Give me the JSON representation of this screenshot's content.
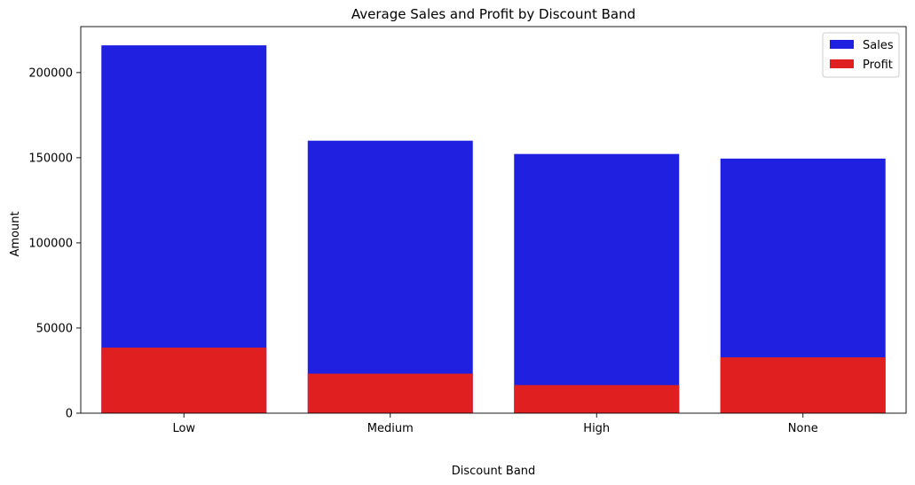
{
  "chart_data": {
    "type": "bar",
    "title": "Average Sales and Profit by Discount Band",
    "xlabel": "Discount Band",
    "ylabel": "Amount",
    "categories": [
      "Low",
      "Medium",
      "High",
      "None"
    ],
    "series": [
      {
        "name": "Sales",
        "color": "#2020e0",
        "values": [
          216000,
          160000,
          152200,
          149500
        ]
      },
      {
        "name": "Profit",
        "color": "#e02020",
        "values": [
          38500,
          23200,
          16500,
          32800
        ]
      }
    ],
    "ylim": [
      0,
      227000
    ],
    "yticks": [
      0,
      50000,
      100000,
      150000,
      200000
    ],
    "ytick_labels": [
      "0",
      "50000",
      "100000",
      "150000",
      "200000"
    ],
    "grid": false,
    "legend_position": "top-right",
    "bar_mode": "overlay"
  }
}
